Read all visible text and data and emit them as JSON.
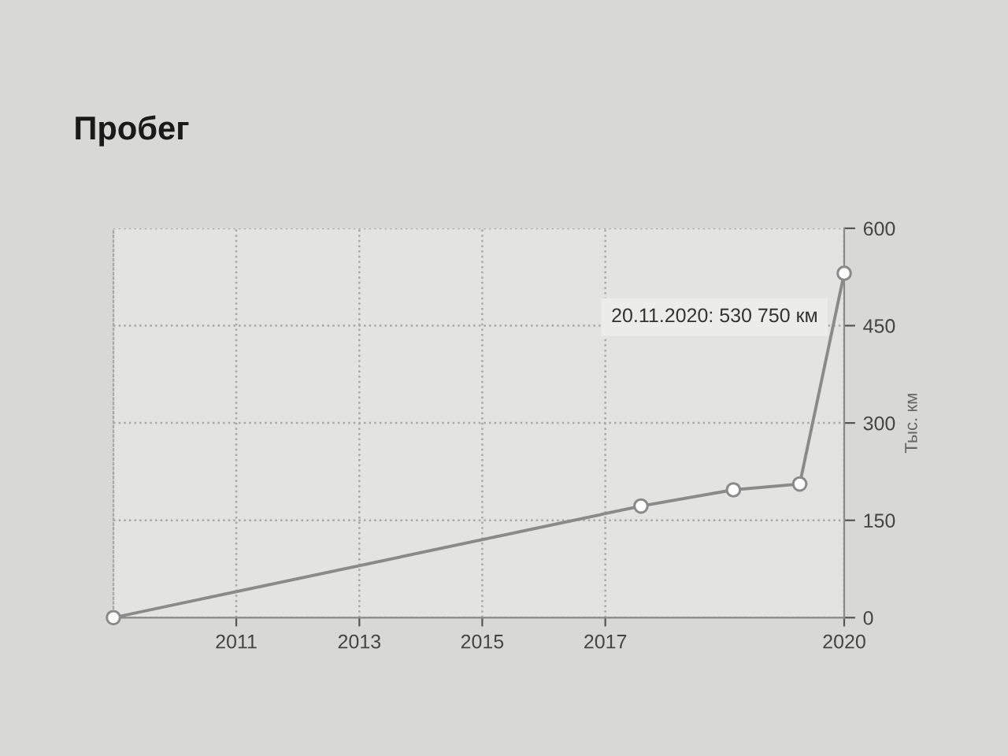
{
  "chart_data": {
    "type": "line",
    "title": "Пробег",
    "ylabel": "Тыс. км",
    "x": [
      "2009-01",
      "2017-08",
      "2019-02",
      "2020-03",
      "2020-11-20"
    ],
    "series": [
      {
        "color": "#8a8a8a",
        "values": [
          0,
          172,
          197,
          206,
          530.75
        ]
      }
    ],
    "xlim": [
      "2009-01",
      "2020-11-20"
    ],
    "xticks": [
      "2011",
      "2013",
      "2015",
      "2017",
      {
        "value": "2020-11-20",
        "label": "2020"
      }
    ],
    "ylim": [
      0,
      600
    ],
    "yticks": [
      0,
      150,
      300,
      450,
      600
    ],
    "grid": true,
    "marker": "circle",
    "line_style": "solid",
    "annotations": [
      {
        "text": "20.11.2020: 530 750 км",
        "x": "2020-11-20",
        "y": 530.75
      }
    ]
  }
}
